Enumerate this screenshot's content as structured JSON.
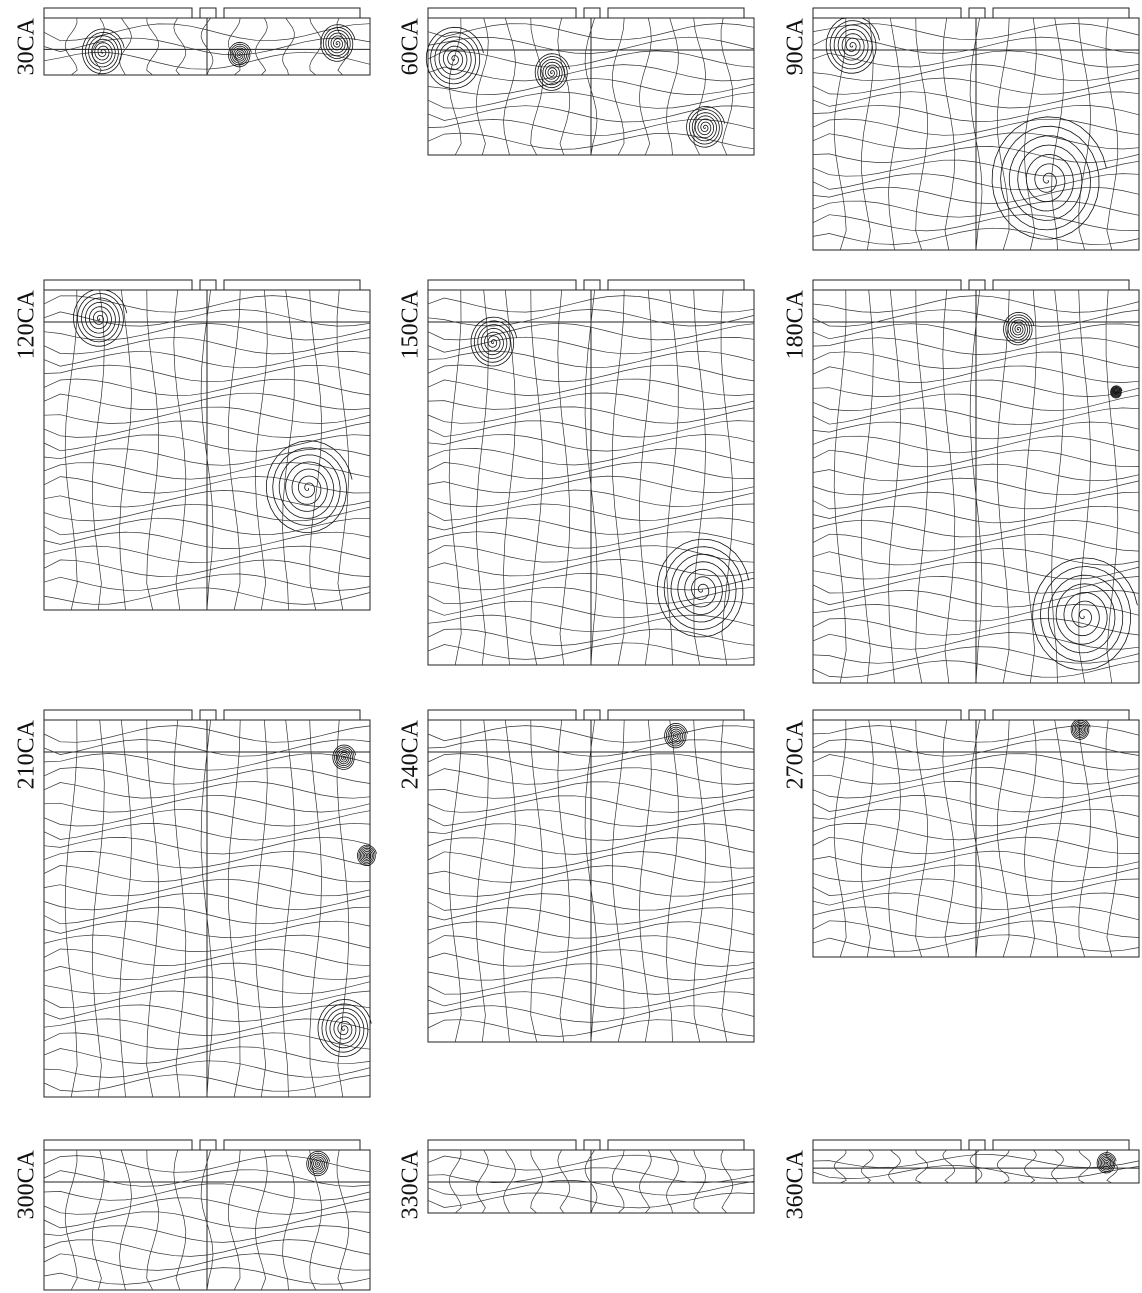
{
  "panels": [
    {
      "label": "30CA"
    },
    {
      "label": "60CA"
    },
    {
      "label": "90CA"
    },
    {
      "label": "120CA"
    },
    {
      "label": "150CA"
    },
    {
      "label": "180CA"
    },
    {
      "label": "210CA"
    },
    {
      "label": "240CA"
    },
    {
      "label": "270CA"
    },
    {
      "label": "300CA"
    },
    {
      "label": "330CA"
    },
    {
      "label": "360CA"
    }
  ]
}
